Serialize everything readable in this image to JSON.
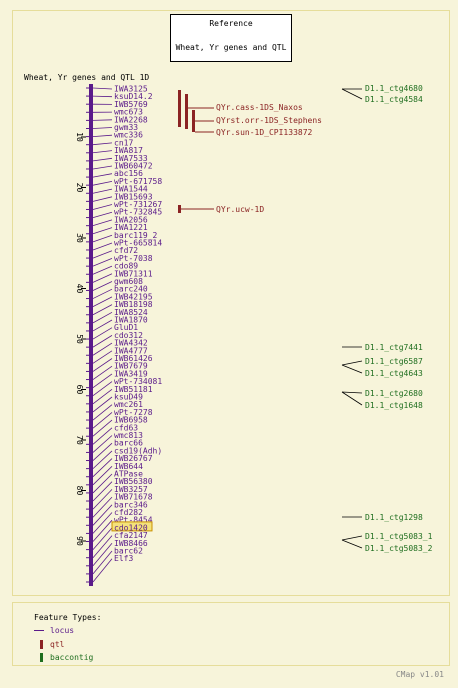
{
  "reference": {
    "title": "Reference",
    "subtitle": "Wheat, Yr genes and QTL"
  },
  "map_title": "Wheat, Yr genes and QTL 1D",
  "axis_ticks": [
    "10",
    "20",
    "30",
    "40",
    "50",
    "60",
    "70",
    "80",
    "90"
  ],
  "loci": [
    "IWA3125",
    "ksuD14.2",
    "IWB5769",
    "wmc673",
    "IWA2268",
    "gwm33",
    "wmc336",
    "cn17",
    "IWA817",
    "IWA7533",
    "IWB60472",
    "abc156",
    "wPt-671758",
    "IWA1544",
    "IWB15693",
    "wPt-731267",
    "wPt-732845",
    "IWA2056",
    "IWA1221",
    "barc119_2",
    "wPt-665814",
    "cfd72",
    "wPt-7038",
    "cdo89",
    "IWB71311",
    "gwm608",
    "barc240",
    "IWB42195",
    "IWB18198",
    "IWA8524",
    "IWA1870",
    "GluD1",
    "cdo312",
    "IWA4342",
    "IWA4777",
    "IWB61426",
    "IWB7679",
    "IWA3419",
    "wPt-734081",
    "IWB51181",
    "ksuD49",
    "wmc261",
    "wPt-7278",
    "IWB6958",
    "cfd63",
    "wmc813",
    "barc66",
    "csd19(Adh)",
    "IWB26767",
    "IWB644",
    "ATPase",
    "IWB56380",
    "IWB3257",
    "IWB71678",
    "barc346",
    "cfd282",
    "wPt-8454",
    "cdo1420",
    "cfa2147",
    "IWB8466",
    "barc62",
    "Elf3"
  ],
  "highlighted_locus": "cdo1420",
  "qtl": [
    "QYr.cass-1DS_Naxos",
    "QYrst.orr-1DS_Stephens",
    "QYr.sun-1D_CPI133872",
    "QYr.ucw-1D"
  ],
  "contigs": [
    "D1.1_ctg4680",
    "D1.1_ctg4584",
    "D1.1_ctg7441",
    "D1.1_ctg6587",
    "D1.1_ctg4643",
    "D1.1_ctg2680",
    "D1.1_ctg1648",
    "D1.1_ctg1298",
    "D1.1_ctg5083_1",
    "D1.1_ctg5083_2"
  ],
  "feature_types": {
    "title": "Feature Types:",
    "items": [
      "locus",
      "qtl",
      "baccontig"
    ]
  },
  "version": "CMap v1.01",
  "colors": {
    "locus": "#5a1a8a",
    "qtl": "#8b2323",
    "contig": "#1f6e1f",
    "background": "#f7f4da"
  }
}
